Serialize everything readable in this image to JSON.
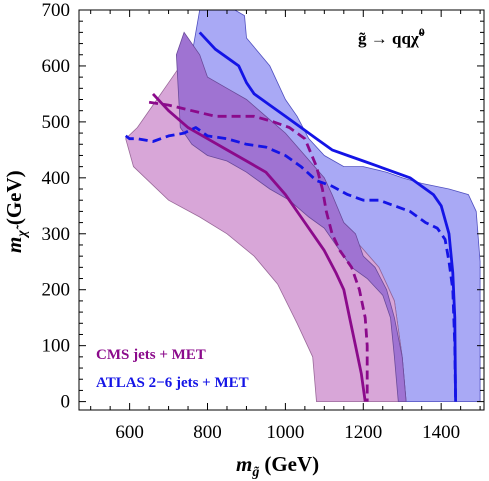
{
  "chart_data": {
    "type": "area",
    "xlabel": "m",
    "xlabel_sub": "g̃",
    "xlabel_unit": "(GeV)",
    "ylabel": "m",
    "ylabel_sub": "χ̃",
    "ylabel_unit": "(GeV)",
    "process_label": "g̃ → qqχ̃",
    "process_sup": "0",
    "xlim": [
      470,
      1510
    ],
    "ylim": [
      -15,
      700
    ],
    "xticks": [
      "600",
      "800",
      "1000",
      "1200",
      "1400"
    ],
    "yticks": [
      "0",
      "100",
      "200",
      "300",
      "400",
      "500",
      "600",
      "700"
    ],
    "colors": {
      "cms": "#8b0a8b",
      "atlas": "#1414e6",
      "cms_outer_fill": "#d8a6d8",
      "cms_inner_fill": "#9f73d2",
      "atlas_fill": "#a9a9f5"
    },
    "regions": [
      {
        "key": "atlas_band",
        "points": [
          [
            780,
            700
          ],
          [
            870,
            700
          ],
          [
            895,
            690
          ],
          [
            900,
            650
          ],
          [
            960,
            600
          ],
          [
            1000,
            540
          ],
          [
            1030,
            510
          ],
          [
            1060,
            470
          ],
          [
            1100,
            440
          ],
          [
            1150,
            420
          ],
          [
            1200,
            420
          ],
          [
            1260,
            410
          ],
          [
            1300,
            400
          ],
          [
            1350,
            390
          ],
          [
            1420,
            380
          ],
          [
            1470,
            370
          ],
          [
            1490,
            340
          ],
          [
            1500,
            250
          ],
          [
            1500,
            0
          ],
          [
            1310,
            0
          ],
          [
            1300,
            80
          ],
          [
            1280,
            180
          ],
          [
            1240,
            240
          ],
          [
            1190,
            280
          ],
          [
            1130,
            320
          ],
          [
            1070,
            370
          ],
          [
            1010,
            410
          ],
          [
            960,
            450
          ],
          [
            900,
            490
          ],
          [
            850,
            515
          ],
          [
            800,
            540
          ],
          [
            770,
            560
          ],
          [
            760,
            620
          ]
        ]
      },
      {
        "key": "cms_outer",
        "points": [
          [
            590,
            470
          ],
          [
            620,
            490
          ],
          [
            660,
            530
          ],
          [
            700,
            570
          ],
          [
            740,
            610
          ],
          [
            760,
            620
          ],
          [
            770,
            560
          ],
          [
            800,
            540
          ],
          [
            850,
            515
          ],
          [
            900,
            490
          ],
          [
            960,
            450
          ],
          [
            1010,
            410
          ],
          [
            1070,
            370
          ],
          [
            1130,
            320
          ],
          [
            1190,
            280
          ],
          [
            1240,
            240
          ],
          [
            1280,
            180
          ],
          [
            1300,
            80
          ],
          [
            1310,
            0
          ],
          [
            1080,
            0
          ],
          [
            1070,
            80
          ],
          [
            1030,
            140
          ],
          [
            980,
            210
          ],
          [
            920,
            260
          ],
          [
            850,
            300
          ],
          [
            780,
            330
          ],
          [
            700,
            360
          ],
          [
            640,
            400
          ],
          [
            610,
            420
          ]
        ]
      },
      {
        "key": "cms_inner",
        "points": [
          [
            720,
            620
          ],
          [
            740,
            660
          ],
          [
            780,
            620
          ],
          [
            800,
            580
          ],
          [
            850,
            560
          ],
          [
            900,
            540
          ],
          [
            950,
            510
          ],
          [
            1000,
            480
          ],
          [
            1050,
            440
          ],
          [
            1100,
            400
          ],
          [
            1120,
            370
          ],
          [
            1150,
            320
          ],
          [
            1180,
            300
          ],
          [
            1200,
            260
          ],
          [
            1230,
            240
          ],
          [
            1260,
            200
          ],
          [
            1280,
            150
          ],
          [
            1300,
            80
          ],
          [
            1310,
            0
          ],
          [
            1290,
            0
          ],
          [
            1280,
            80
          ],
          [
            1270,
            150
          ],
          [
            1250,
            190
          ],
          [
            1210,
            220
          ],
          [
            1170,
            240
          ],
          [
            1130,
            280
          ],
          [
            1100,
            310
          ],
          [
            1060,
            330
          ],
          [
            1010,
            360
          ],
          [
            960,
            380
          ],
          [
            900,
            410
          ],
          [
            850,
            430
          ],
          [
            800,
            440
          ],
          [
            760,
            460
          ],
          [
            730,
            490
          ]
        ]
      }
    ],
    "series": [
      {
        "name": "CMS jets + MET",
        "key": "cms_obs",
        "style": "solid",
        "points": [
          [
            660,
            550
          ],
          [
            700,
            520
          ],
          [
            750,
            490
          ],
          [
            800,
            470
          ],
          [
            850,
            450
          ],
          [
            900,
            430
          ],
          [
            950,
            410
          ],
          [
            1000,
            370
          ],
          [
            1040,
            330
          ],
          [
            1070,
            300
          ],
          [
            1100,
            270
          ],
          [
            1130,
            230
          ],
          [
            1150,
            200
          ],
          [
            1165,
            150
          ],
          [
            1180,
            100
          ],
          [
            1195,
            50
          ],
          [
            1205,
            0
          ]
        ]
      },
      {
        "name": "CMS jets + MET",
        "key": "cms_exp",
        "style": "dashed",
        "points": [
          [
            650,
            535
          ],
          [
            700,
            530
          ],
          [
            760,
            520
          ],
          [
            820,
            510
          ],
          [
            870,
            510
          ],
          [
            920,
            510
          ],
          [
            970,
            500
          ],
          [
            1010,
            490
          ],
          [
            1050,
            470
          ],
          [
            1080,
            420
          ],
          [
            1095,
            380
          ],
          [
            1105,
            340
          ],
          [
            1120,
            300
          ],
          [
            1140,
            270
          ],
          [
            1170,
            240
          ],
          [
            1190,
            200
          ],
          [
            1205,
            150
          ],
          [
            1210,
            100
          ],
          [
            1210,
            0
          ]
        ]
      },
      {
        "name": "ATLAS 2−6 jets + MET",
        "key": "atlas_obs",
        "style": "solid",
        "points": [
          [
            780,
            660
          ],
          [
            820,
            630
          ],
          [
            860,
            610
          ],
          [
            880,
            600
          ],
          [
            900,
            570
          ],
          [
            920,
            550
          ],
          [
            960,
            530
          ],
          [
            1000,
            510
          ],
          [
            1040,
            490
          ],
          [
            1080,
            470
          ],
          [
            1120,
            450
          ],
          [
            1160,
            440
          ],
          [
            1200,
            430
          ],
          [
            1240,
            420
          ],
          [
            1280,
            410
          ],
          [
            1320,
            400
          ],
          [
            1360,
            380
          ],
          [
            1380,
            370
          ],
          [
            1400,
            350
          ],
          [
            1420,
            300
          ],
          [
            1430,
            230
          ],
          [
            1435,
            150
          ],
          [
            1437,
            0
          ]
        ]
      },
      {
        "name": "ATLAS 2−6 jets + MET",
        "key": "atlas_exp",
        "style": "dashed",
        "points": [
          [
            590,
            475
          ],
          [
            600,
            470
          ],
          [
            620,
            470
          ],
          [
            660,
            465
          ],
          [
            700,
            475
          ],
          [
            740,
            480
          ],
          [
            770,
            490
          ],
          [
            800,
            475
          ],
          [
            850,
            470
          ],
          [
            900,
            460
          ],
          [
            950,
            455
          ],
          [
            1000,
            440
          ],
          [
            1040,
            420
          ],
          [
            1080,
            395
          ],
          [
            1120,
            385
          ],
          [
            1160,
            370
          ],
          [
            1200,
            360
          ],
          [
            1240,
            360
          ],
          [
            1280,
            350
          ],
          [
            1320,
            340
          ],
          [
            1360,
            320
          ],
          [
            1390,
            310
          ],
          [
            1410,
            290
          ],
          [
            1420,
            250
          ],
          [
            1430,
            200
          ],
          [
            1435,
            100
          ],
          [
            1437,
            0
          ]
        ]
      }
    ],
    "legend": {
      "position": "bottom-left",
      "entries": [
        {
          "label": "CMS jets + MET",
          "color_key": "cms"
        },
        {
          "label": "ATLAS 2−6 jets + MET",
          "color_key": "atlas"
        }
      ]
    }
  }
}
